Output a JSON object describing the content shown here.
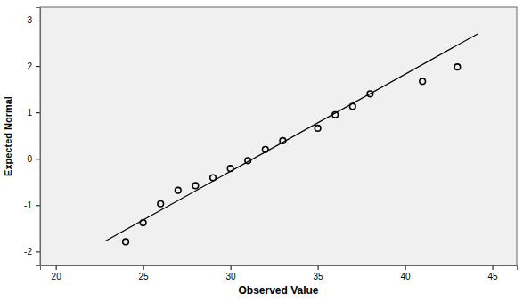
{
  "chart_data": {
    "type": "scatter",
    "x_label": "Observed Value",
    "y_label": "Expected Normal",
    "xlim": [
      19.1,
      46.4
    ],
    "ylim": [
      -2.3,
      3.27
    ],
    "xticks": [
      20,
      25,
      30,
      35,
      40,
      45
    ],
    "yticks": [
      -2,
      -1,
      0,
      1,
      2,
      3
    ],
    "grid": false,
    "series": [
      {
        "type": "scatter",
        "marker": "circle",
        "color": "#000000",
        "x": [
          24,
          25,
          26,
          27,
          28,
          29,
          30,
          31,
          32,
          33,
          35,
          36,
          37,
          38,
          41,
          43
        ],
        "values": [
          -1.79,
          -1.38,
          -0.97,
          -0.68,
          -0.58,
          -0.41,
          -0.21,
          -0.04,
          0.2,
          0.39,
          0.66,
          0.95,
          1.13,
          1.4,
          1.67,
          1.98
        ]
      },
      {
        "type": "line",
        "line_style": "solid",
        "color": "#000000",
        "x": [
          22.85,
          44.19
        ],
        "values": [
          -1.77,
          2.7
        ]
      }
    ]
  }
}
